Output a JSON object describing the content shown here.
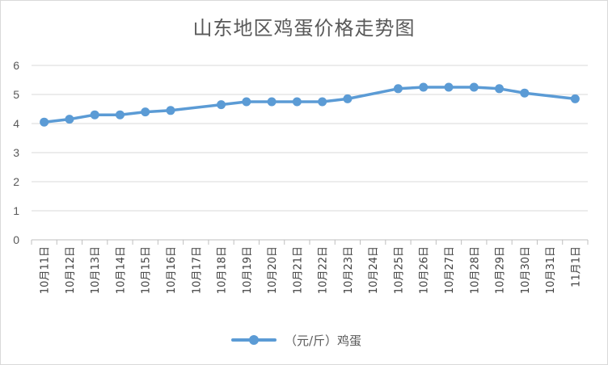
{
  "chart_data": {
    "type": "line",
    "title": "山东地区鸡蛋价格走势图",
    "xlabel": "",
    "ylabel": "",
    "ylim": [
      0,
      6
    ],
    "yticks": [
      "0",
      "1",
      "2",
      "3",
      "4",
      "5",
      "6"
    ],
    "grid": true,
    "legend_position": "bottom",
    "categories": [
      "10月11日",
      "10月12日",
      "10月13日",
      "10月14日",
      "10月15日",
      "10月16日",
      "10月17日",
      "10月18日",
      "10月19日",
      "10月20日",
      "10月21日",
      "10月22日",
      "10月23日",
      "10月24日",
      "10月25日",
      "10月26日",
      "10月27日",
      "10月28日",
      "10月29日",
      "10月30日",
      "10月31日",
      "11月1日"
    ],
    "series": [
      {
        "name": "（元/斤）鸡蛋",
        "color": "#5b9bd5",
        "values": [
          4.05,
          4.15,
          4.3,
          4.3,
          4.4,
          4.45,
          null,
          4.65,
          4.75,
          4.75,
          4.75,
          4.75,
          4.85,
          null,
          5.2,
          5.25,
          5.25,
          5.25,
          5.2,
          5.05,
          null,
          4.85
        ]
      }
    ]
  }
}
